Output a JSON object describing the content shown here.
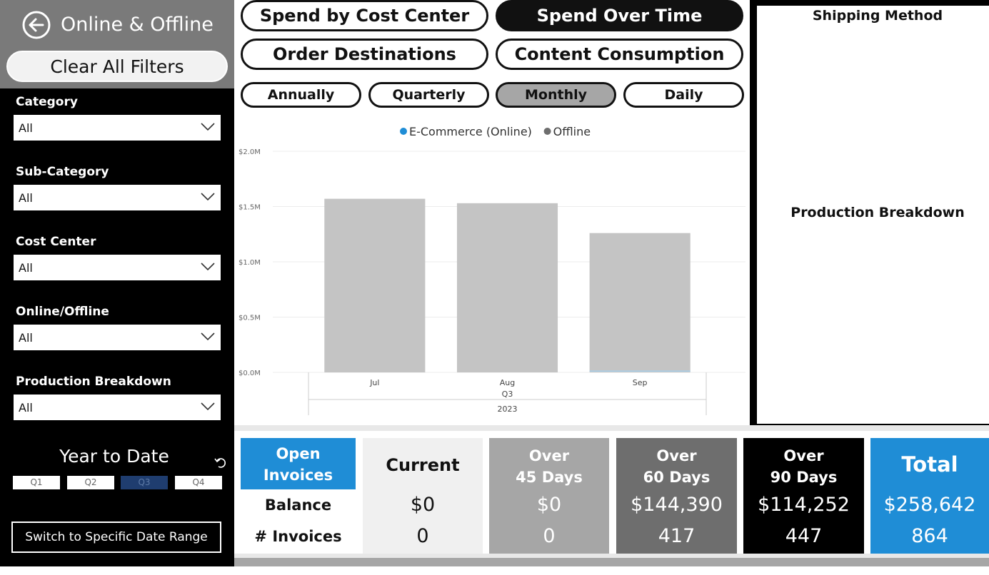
{
  "sidebar": {
    "title": "Online & Offline",
    "clear_filters": "Clear All Filters",
    "filters": [
      {
        "label": "Category",
        "value": "All"
      },
      {
        "label": "Sub-Category",
        "value": "All"
      },
      {
        "label": "Cost Center",
        "value": "All"
      },
      {
        "label": "Online/Offline",
        "value": "All"
      },
      {
        "label": "Production Breakdown",
        "value": "All"
      }
    ],
    "date_title": "Year to Date",
    "quarters": [
      "Q1",
      "Q2",
      "Q3",
      "Q4"
    ],
    "selected_quarter": "Q3",
    "switch_label": "Switch to Specific Date Range"
  },
  "nav": {
    "tabs": [
      "Spend by Cost Center",
      "Spend Over Time",
      "Order Destinations",
      "Content Consumption"
    ],
    "active_tab": "Spend Over Time",
    "periods": [
      "Annually",
      "Quarterly",
      "Monthly",
      "Daily"
    ],
    "active_period": "Monthly"
  },
  "chart_data": {
    "type": "bar",
    "categories": [
      "Jul",
      "Aug",
      "Sep"
    ],
    "series": [
      {
        "name": "E-Commerce (Online)",
        "color": "#1f8dd6",
        "values": [
          0,
          0,
          0.01
        ]
      },
      {
        "name": "Offline",
        "color": "#6e6e6e",
        "values": [
          1.57,
          1.53,
          1.26
        ]
      }
    ],
    "y_ticks": [
      "$0.0M",
      "$0.5M",
      "$1.0M",
      "$1.5M",
      "$2.0M"
    ],
    "ylim": [
      0,
      2.0
    ],
    "x_group_quarter": "Q3",
    "x_group_year": "2023",
    "legend_position": "top-center",
    "bar_color": "#c4c4c4",
    "grid": true
  },
  "right_panel": {
    "title_top": "Shipping Method",
    "title_mid": "Production Breakdown"
  },
  "invoices": {
    "header": "Open\nInvoices",
    "row_labels": [
      "Balance",
      "# Invoices"
    ],
    "columns": [
      {
        "header": "Current",
        "balance": "$0",
        "count": "0",
        "bg": "#f0f0f0",
        "fg": "#111111"
      },
      {
        "header": "Over\n45 Days",
        "balance": "$0",
        "count": "0",
        "bg": "#a6a6a6",
        "fg": "#ffffff"
      },
      {
        "header": "Over\n60 Days",
        "balance": "$144,390",
        "count": "417",
        "bg": "#6e6e6e",
        "fg": "#ffffff"
      },
      {
        "header": "Over\n90 Days",
        "balance": "$114,252",
        "count": "447",
        "bg": "#000000",
        "fg": "#ffffff"
      },
      {
        "header": "Total",
        "balance": "$258,642",
        "count": "864",
        "bg": "#1f8dd6",
        "fg": "#ffffff"
      }
    ]
  },
  "colors": {
    "accent": "#1f8dd6",
    "sidebar": "#000000",
    "sidebar_header": "#7a7a7a"
  }
}
